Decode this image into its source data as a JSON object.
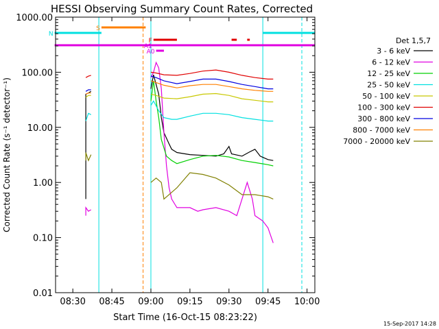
{
  "chart_data": {
    "type": "line",
    "title": "HESSI Observing Summary Count Rates, Corrected",
    "xlabel": "Start Time (16-Oct-15 08:23:22)",
    "ylabel": "Corrected Count Rate (s⁻¹ detector⁻¹)",
    "yscale": "log",
    "ylim": [
      0.01,
      1000
    ],
    "xlim_minutes": [
      "08:23",
      "10:03"
    ],
    "x_ticks": [
      "08:30",
      "08:45",
      "09:00",
      "09:15",
      "09:30",
      "09:45",
      "10:00"
    ],
    "y_ticks": [
      "1000.00",
      "100.00",
      "10.00",
      "1.00",
      "0.10",
      "0.01"
    ],
    "timestamp": "15-Sep-2017 14:28",
    "legend": {
      "title": "Det 1,5,7",
      "placement": "right",
      "entries": [
        {
          "label": "3 - 6 keV",
          "color": "#000000"
        },
        {
          "label": "6 - 12 keV",
          "color": "#e000e0"
        },
        {
          "label": "12 - 25 keV",
          "color": "#00d000"
        },
        {
          "label": "25 - 50 keV",
          "color": "#00e0e0"
        },
        {
          "label": "50 - 100 keV",
          "color": "#c8c800"
        },
        {
          "label": "100 - 300 keV",
          "color": "#e00000"
        },
        {
          "label": "300 - 800 keV",
          "color": "#0000e0"
        },
        {
          "label": "800 - 7000 keV",
          "color": "#ff8000"
        },
        {
          "label": "7000 - 20000 keV",
          "color": "#808000"
        }
      ]
    },
    "flag_bars": [
      {
        "label": "S",
        "color": "#ff8000",
        "start": "08:41",
        "end": "08:58"
      },
      {
        "label": "N",
        "color": "#00e0e0",
        "start": "08:23",
        "end": "08:41"
      },
      {
        "label": "",
        "color": "#00e0e0",
        "start": "09:43",
        "end": "10:03"
      },
      {
        "label": "F",
        "color": "#e00000",
        "start": "09:01",
        "end": "09:10"
      },
      {
        "label": "",
        "color": "#e00000",
        "start": "09:31",
        "end": "09:33"
      },
      {
        "label": "",
        "color": "#e00000",
        "start": "09:37",
        "end": "09:38"
      },
      {
        "label": "",
        "color": "#e000e0",
        "start": "08:23",
        "end": "10:03"
      },
      {
        "label": "A1",
        "color": "#e000e0",
        "start": "09:01",
        "end": "09:01"
      },
      {
        "label": "A0",
        "color": "#e000e0",
        "start": "09:02",
        "end": "09:05"
      }
    ],
    "vlines": [
      {
        "time": "08:40",
        "color": "#00e0e0",
        "style": "solid"
      },
      {
        "time": "08:57",
        "color": "#ff8000",
        "style": "dashed"
      },
      {
        "time": "09:00",
        "color": "#00e0e0",
        "style": "solid"
      },
      {
        "time": "09:43",
        "color": "#00e0e0",
        "style": "solid"
      },
      {
        "time": "09:58",
        "color": "#00e0e0",
        "style": "dashed"
      }
    ],
    "series": [
      {
        "name": "3 - 6 keV",
        "color": "#000000",
        "segments": [
          [
            [
              "08:35",
              0.5
            ],
            [
              "08:35",
              40
            ],
            [
              "08:36",
              42
            ],
            [
              "08:37",
              45
            ]
          ],
          [
            [
              "09:00",
              50
            ],
            [
              "09:01",
              90
            ],
            [
              "09:02",
              60
            ],
            [
              "09:03",
              40
            ],
            [
              "09:04",
              15
            ],
            [
              "09:05",
              8
            ],
            [
              "09:07",
              5
            ],
            [
              "09:08",
              4
            ],
            [
              "09:10",
              3.5
            ],
            [
              "09:15",
              3.2
            ],
            [
              "09:20",
              3.1
            ],
            [
              "09:25",
              3
            ],
            [
              "09:28",
              3.3
            ],
            [
              "09:30",
              4.5
            ],
            [
              "09:31",
              3.3
            ],
            [
              "09:35",
              3
            ],
            [
              "09:38",
              3.6
            ],
            [
              "09:40",
              4
            ],
            [
              "09:42",
              3
            ],
            [
              "09:45",
              2.6
            ],
            [
              "09:47",
              2.5
            ]
          ]
        ]
      },
      {
        "name": "6 - 12 keV",
        "color": "#e000e0",
        "segments": [
          [
            [
              "08:35",
              0.25
            ],
            [
              "08:35",
              0.35
            ],
            [
              "08:36",
              0.3
            ],
            [
              "08:37",
              0.32
            ]
          ],
          [
            [
              "09:00",
              80
            ],
            [
              "09:01",
              100
            ],
            [
              "09:02",
              150
            ],
            [
              "09:03",
              120
            ],
            [
              "09:04",
              50
            ],
            [
              "09:05",
              8
            ],
            [
              "09:06",
              2
            ],
            [
              "09:07",
              0.8
            ],
            [
              "09:08",
              0.5
            ],
            [
              "09:10",
              0.35
            ],
            [
              "09:15",
              0.35
            ],
            [
              "09:18",
              0.3
            ],
            [
              "09:20",
              0.32
            ],
            [
              "09:25",
              0.35
            ],
            [
              "09:30",
              0.3
            ],
            [
              "09:33",
              0.25
            ],
            [
              "09:35",
              0.5
            ],
            [
              "09:37",
              1.0
            ],
            [
              "09:39",
              0.5
            ],
            [
              "09:40",
              0.25
            ],
            [
              "09:43",
              0.2
            ],
            [
              "09:45",
              0.15
            ],
            [
              "09:47",
              0.08
            ]
          ]
        ]
      },
      {
        "name": "12 - 25 keV",
        "color": "#00d000",
        "segments": [
          [
            [
              "09:00",
              30
            ],
            [
              "09:01",
              70
            ],
            [
              "09:02",
              30
            ],
            [
              "09:03",
              15
            ],
            [
              "09:04",
              6
            ],
            [
              "09:06",
              3
            ],
            [
              "09:08",
              2.5
            ],
            [
              "09:10",
              2.2
            ],
            [
              "09:15",
              2.6
            ],
            [
              "09:20",
              3
            ],
            [
              "09:25",
              3.1
            ],
            [
              "09:30",
              2.9
            ],
            [
              "09:35",
              2.5
            ],
            [
              "09:40",
              2.3
            ],
            [
              "09:45",
              2.1
            ],
            [
              "09:47",
              2.0
            ]
          ]
        ]
      },
      {
        "name": "25 - 50 keV",
        "color": "#00e0e0",
        "segments": [
          [
            [
              "08:35",
              13
            ],
            [
              "08:36",
              18
            ],
            [
              "08:37",
              17
            ]
          ],
          [
            [
              "09:00",
              25
            ],
            [
              "09:01",
              30
            ],
            [
              "09:03",
              20
            ],
            [
              "09:05",
              15
            ],
            [
              "09:08",
              14
            ],
            [
              "09:10",
              14
            ],
            [
              "09:15",
              16
            ],
            [
              "09:20",
              18
            ],
            [
              "09:25",
              18
            ],
            [
              "09:30",
              17
            ],
            [
              "09:35",
              15
            ],
            [
              "09:40",
              14
            ],
            [
              "09:45",
              13
            ],
            [
              "09:47",
              13
            ]
          ]
        ]
      },
      {
        "name": "50 - 100 keV",
        "color": "#c8c800",
        "segments": [
          [
            [
              "08:35",
              35
            ],
            [
              "08:36",
              38
            ],
            [
              "08:37",
              38
            ]
          ],
          [
            [
              "09:00",
              40
            ],
            [
              "09:02",
              38
            ],
            [
              "09:05",
              34
            ],
            [
              "09:10",
              33
            ],
            [
              "09:15",
              36
            ],
            [
              "09:20",
              40
            ],
            [
              "09:25",
              41
            ],
            [
              "09:30",
              38
            ],
            [
              "09:35",
              33
            ],
            [
              "09:40",
              31
            ],
            [
              "09:45",
              29
            ],
            [
              "09:47",
              29
            ]
          ]
        ]
      },
      {
        "name": "100 - 300 keV",
        "color": "#e00000",
        "segments": [
          [
            [
              "08:35",
              80
            ],
            [
              "08:36",
              85
            ],
            [
              "08:37",
              88
            ]
          ],
          [
            [
              "09:00",
              100
            ],
            [
              "09:02",
              97
            ],
            [
              "09:05",
              90
            ],
            [
              "09:10",
              88
            ],
            [
              "09:15",
              95
            ],
            [
              "09:20",
              105
            ],
            [
              "09:25",
              110
            ],
            [
              "09:30",
              100
            ],
            [
              "09:35",
              88
            ],
            [
              "09:40",
              80
            ],
            [
              "09:45",
              75
            ],
            [
              "09:47",
              75
            ]
          ]
        ]
      },
      {
        "name": "300 - 800 keV",
        "color": "#0000e0",
        "segments": [
          [
            [
              "08:35",
              45
            ],
            [
              "08:36",
              48
            ],
            [
              "08:37",
              48
            ]
          ],
          [
            [
              "09:00",
              85
            ],
            [
              "09:02",
              80
            ],
            [
              "09:05",
              70
            ],
            [
              "09:10",
              62
            ],
            [
              "09:15",
              68
            ],
            [
              "09:20",
              75
            ],
            [
              "09:25",
              75
            ],
            [
              "09:30",
              68
            ],
            [
              "09:35",
              60
            ],
            [
              "09:40",
              55
            ],
            [
              "09:45",
              50
            ],
            [
              "09:47",
              50
            ]
          ]
        ]
      },
      {
        "name": "800 - 7000 keV",
        "color": "#ff8000",
        "segments": [
          [
            [
              "08:35",
              40
            ],
            [
              "08:36",
              42
            ],
            [
              "08:37",
              42
            ]
          ],
          [
            [
              "09:00",
              70
            ],
            [
              "09:02",
              65
            ],
            [
              "09:05",
              58
            ],
            [
              "09:10",
              52
            ],
            [
              "09:15",
              57
            ],
            [
              "09:20",
              60
            ],
            [
              "09:25",
              60
            ],
            [
              "09:30",
              55
            ],
            [
              "09:35",
              50
            ],
            [
              "09:40",
              47
            ],
            [
              "09:45",
              45
            ],
            [
              "09:47",
              45
            ]
          ]
        ]
      },
      {
        "name": "7000 - 20000 keV",
        "color": "#808000",
        "segments": [
          [
            [
              "08:35",
              2.5
            ],
            [
              "08:35",
              3.5
            ],
            [
              "08:36",
              2.5
            ],
            [
              "08:37",
              3.2
            ]
          ],
          [
            [
              "09:00",
              1.0
            ],
            [
              "09:02",
              1.2
            ],
            [
              "09:04",
              1.0
            ],
            [
              "09:05",
              0.5
            ],
            [
              "09:10",
              0.8
            ],
            [
              "09:15",
              1.5
            ],
            [
              "09:20",
              1.4
            ],
            [
              "09:25",
              1.2
            ],
            [
              "09:30",
              0.9
            ],
            [
              "09:35",
              0.6
            ],
            [
              "09:40",
              0.6
            ],
            [
              "09:45",
              0.55
            ],
            [
              "09:47",
              0.5
            ]
          ]
        ]
      }
    ]
  }
}
